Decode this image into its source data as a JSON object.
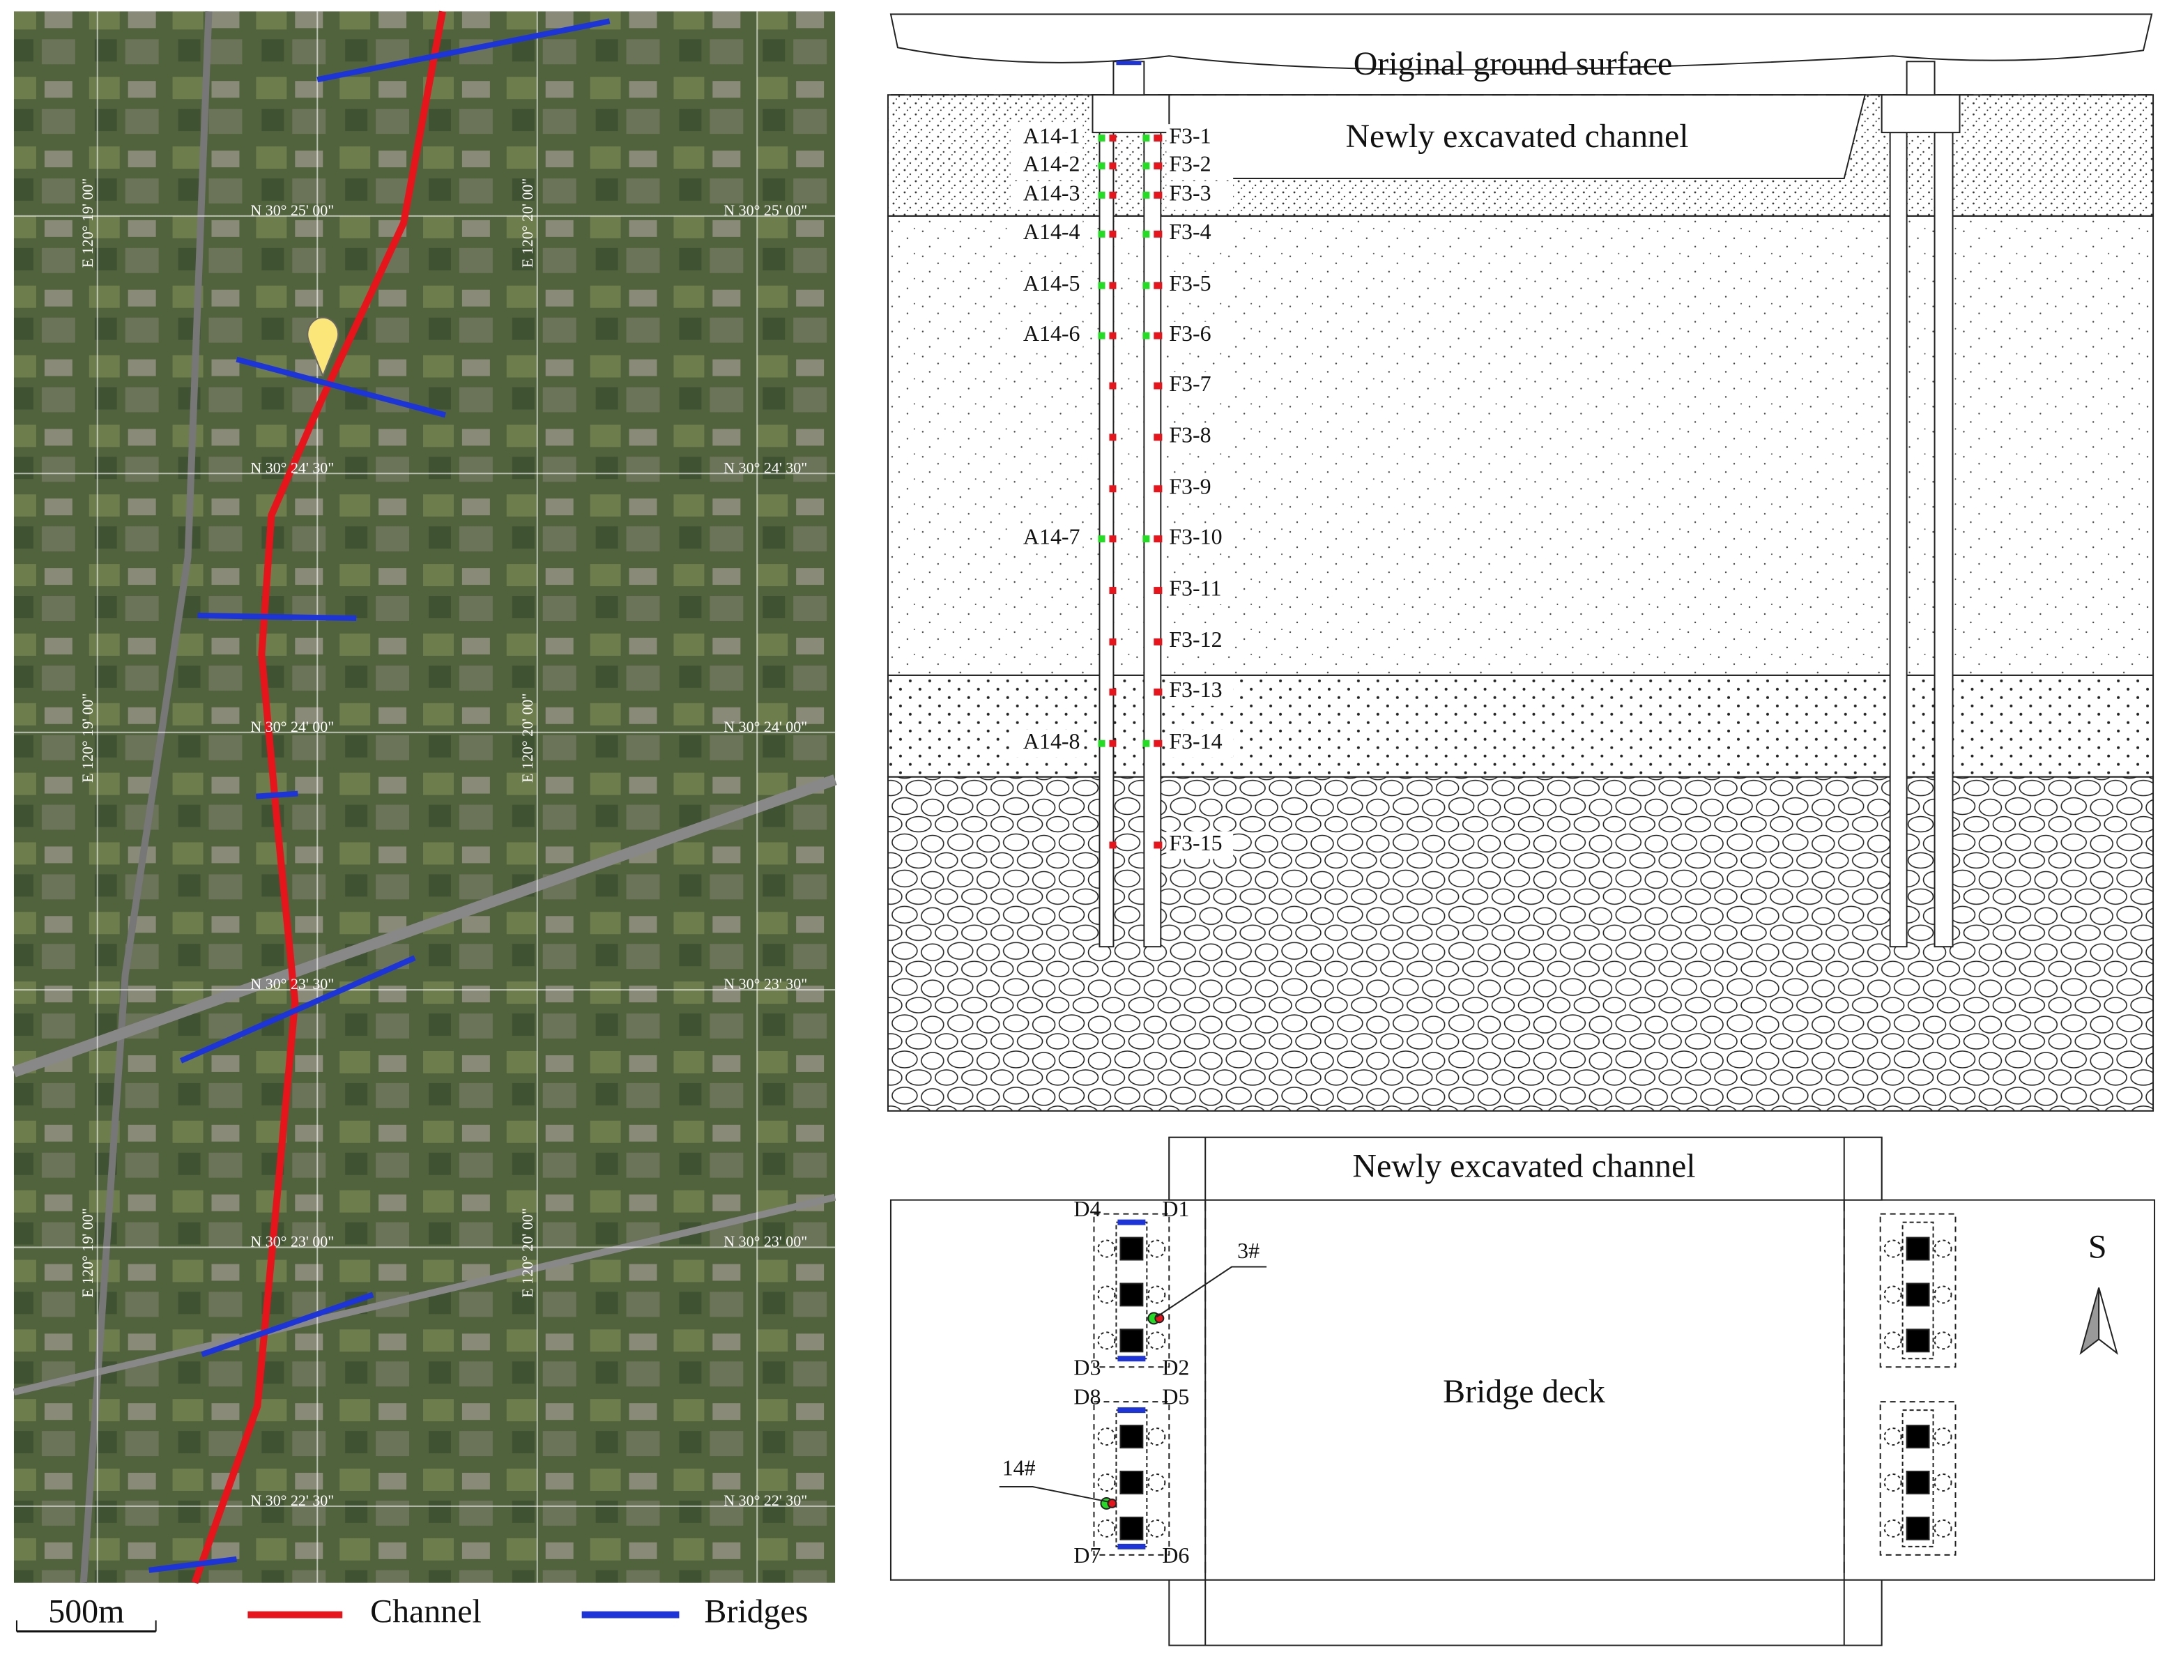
{
  "map": {
    "lat_labels": [
      "N 30° 25' 00\"",
      "N 30° 24' 30\"",
      "N 30° 24' 00\"",
      "N 30° 23' 30\"",
      "N 30° 23' 00\"",
      "N 30° 22' 30\""
    ],
    "lon_labels": [
      "E 120° 19' 00\"",
      "E 120° 20' 00\""
    ],
    "scale_label": "500m",
    "legend": [
      {
        "label": "Channel",
        "color": "#e8141b"
      },
      {
        "label": "Bridges",
        "color": "#1d35d8"
      }
    ]
  },
  "section": {
    "ground_label": "Original ground surface",
    "channel_label": "Newly excavated channel",
    "left_sensors": [
      "A14-1",
      "A14-2",
      "A14-3",
      "A14-4",
      "A14-5",
      "A14-6",
      "A14-7",
      "A14-8"
    ],
    "right_sensors": [
      "F3-1",
      "F3-2",
      "F3-3",
      "F3-4",
      "F3-5",
      "F3-6",
      "F3-7",
      "F3-8",
      "F3-9",
      "F3-10",
      "F3-11",
      "F3-12",
      "F3-13",
      "F3-14",
      "F3-15"
    ]
  },
  "plan": {
    "channel_label": "Newly excavated channel",
    "deck_label": "Bridge deck",
    "points": [
      "D1",
      "D2",
      "D3",
      "D4",
      "D5",
      "D6",
      "D7",
      "D8"
    ],
    "piles": [
      "3#",
      "14#"
    ],
    "orientation": "S"
  }
}
